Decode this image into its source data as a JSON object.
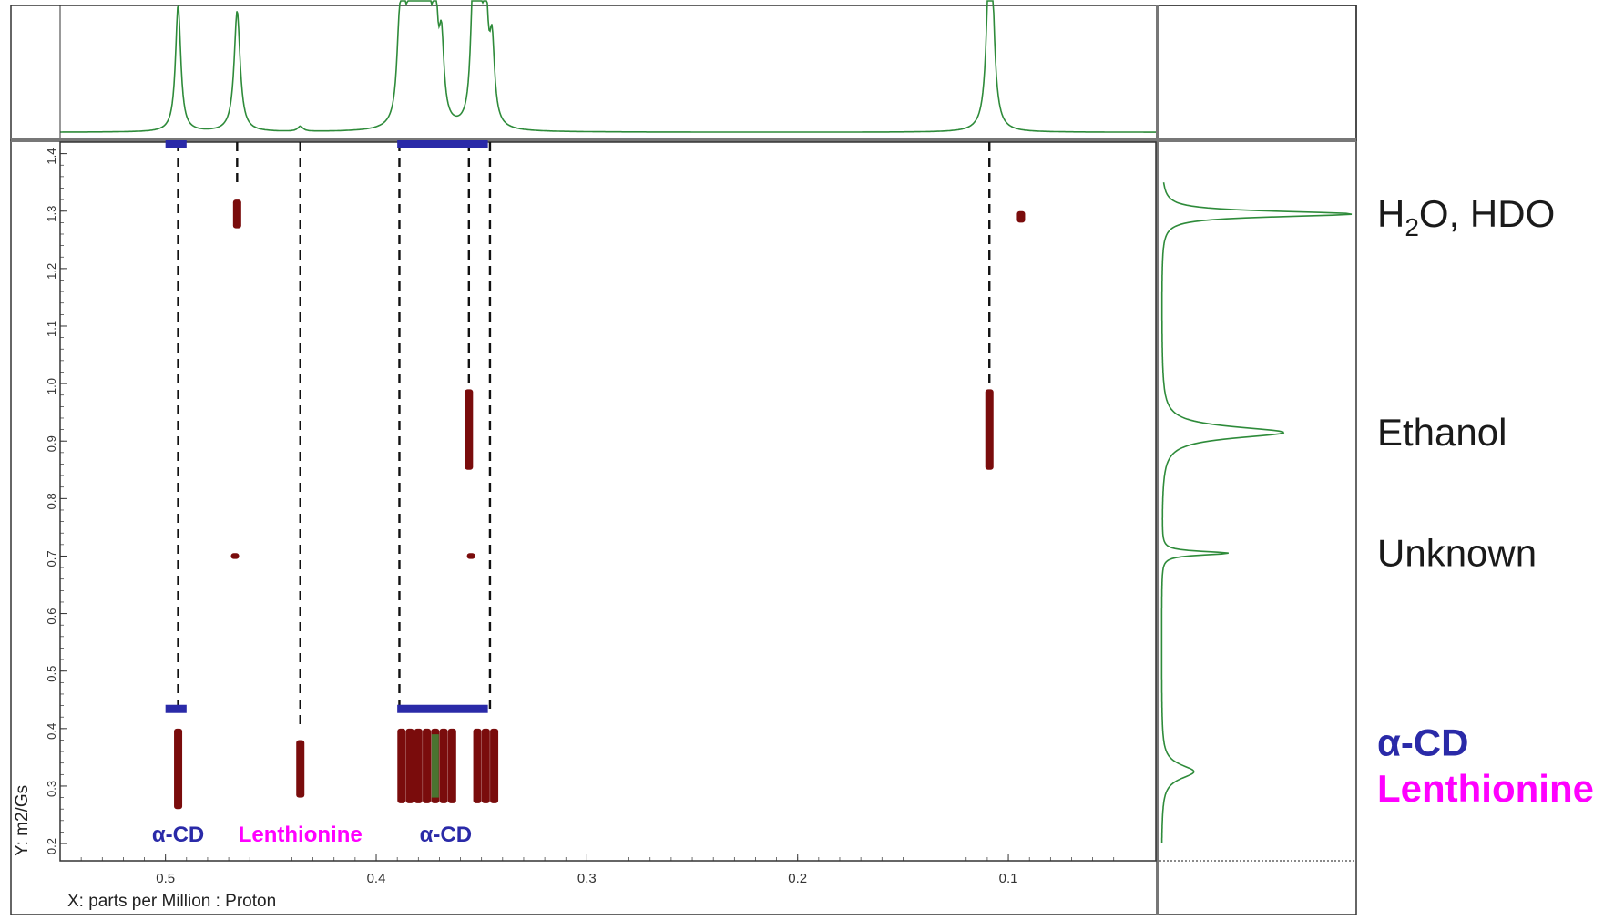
{
  "colors": {
    "spectrum": "#2e8b3a",
    "cross_peak": "#7a0c0c",
    "alpha_cd": "#2a2aa8",
    "lenthionine": "#ff00ff",
    "frame": "#333333"
  },
  "chart_data": {
    "type": "heatmap",
    "subtype": "2D DOSY NMR",
    "title": "",
    "xlabel": "X: parts per Million : Proton",
    "ylabel": "Y: m2/Gs",
    "xlim": [
      0.55,
      0.03
    ],
    "ylim": [
      0.17,
      1.42
    ],
    "x_ticks": [
      {
        "value": 0.5,
        "label": "0.5"
      },
      {
        "value": 0.4,
        "label": "0.4"
      },
      {
        "value": 0.3,
        "label": "0.3"
      },
      {
        "value": 0.2,
        "label": "0.2"
      },
      {
        "value": 0.1,
        "label": "0.1"
      }
    ],
    "y_ticks": [
      {
        "value": 0.2,
        "label": "0.2"
      },
      {
        "value": 0.3,
        "label": "0.3"
      },
      {
        "value": 0.4,
        "label": "0.4"
      },
      {
        "value": 0.5,
        "label": "0.5"
      },
      {
        "value": 0.6,
        "label": "0.6"
      },
      {
        "value": 0.7,
        "label": "0.7"
      },
      {
        "value": 0.8,
        "label": "0.8"
      },
      {
        "value": 0.9,
        "label": "0.9"
      },
      {
        "value": 1.0,
        "label": "1.0"
      },
      {
        "value": 1.1,
        "label": "1.1"
      },
      {
        "value": 1.2,
        "label": "1.2"
      },
      {
        "value": 1.3,
        "label": "1.3"
      },
      {
        "value": 1.4,
        "label": "1.4"
      }
    ],
    "cross_peaks": [
      {
        "x": 0.494,
        "y0": 0.26,
        "y1": 0.4
      },
      {
        "x": 0.436,
        "y0": 0.28,
        "y1": 0.38
      },
      {
        "x": 0.388,
        "y0": 0.27,
        "y1": 0.4
      },
      {
        "x": 0.384,
        "y0": 0.27,
        "y1": 0.4
      },
      {
        "x": 0.38,
        "y0": 0.27,
        "y1": 0.4
      },
      {
        "x": 0.376,
        "y0": 0.27,
        "y1": 0.4
      },
      {
        "x": 0.372,
        "y0": 0.27,
        "y1": 0.4
      },
      {
        "x": 0.368,
        "y0": 0.27,
        "y1": 0.4
      },
      {
        "x": 0.364,
        "y0": 0.27,
        "y1": 0.4
      },
      {
        "x": 0.352,
        "y0": 0.27,
        "y1": 0.4
      },
      {
        "x": 0.348,
        "y0": 0.27,
        "y1": 0.4
      },
      {
        "x": 0.344,
        "y0": 0.27,
        "y1": 0.4
      },
      {
        "x": 0.466,
        "y0": 1.27,
        "y1": 1.32
      },
      {
        "x": 0.094,
        "y0": 1.28,
        "y1": 1.3
      },
      {
        "x": 0.356,
        "y0": 0.85,
        "y1": 0.99
      },
      {
        "x": 0.109,
        "y0": 0.85,
        "y1": 0.99
      },
      {
        "x": 0.467,
        "y0": 0.695,
        "y1": 0.705
      },
      {
        "x": 0.355,
        "y0": 0.695,
        "y1": 0.705
      }
    ],
    "groups": [
      {
        "name": "α-CD",
        "x0": 0.49,
        "x1": 0.5,
        "color": "alpha_cd"
      },
      {
        "name": "α-CD",
        "x0": 0.347,
        "x1": 0.39,
        "color": "alpha_cd"
      }
    ],
    "guide_lines": [
      {
        "x": 0.494,
        "y_top": 1.42,
        "y_bottom": 0.43
      },
      {
        "x": 0.466,
        "y_top": 1.42,
        "y_bottom": 1.34
      },
      {
        "x": 0.436,
        "y_top": 1.42,
        "y_bottom": 0.4
      },
      {
        "x": 0.389,
        "y_top": 1.42,
        "y_bottom": 0.43
      },
      {
        "x": 0.356,
        "y_top": 1.42,
        "y_bottom": 1.0
      },
      {
        "x": 0.346,
        "y_top": 1.42,
        "y_bottom": 0.43
      },
      {
        "x": 0.109,
        "y_top": 1.42,
        "y_bottom": 1.0
      }
    ],
    "bottom_labels": [
      {
        "text": "α-CD",
        "x": 0.494,
        "color": "alpha_cd"
      },
      {
        "text": "Lenthionine",
        "x": 0.436,
        "color": "lenthionine"
      },
      {
        "text": "α-CD",
        "x": 0.367,
        "color": "alpha_cd"
      }
    ],
    "top_projection_peaks": [
      {
        "x": 0.494,
        "height": 1.0,
        "width": 0.0015
      },
      {
        "x": 0.466,
        "height": 0.95,
        "width": 0.0017
      },
      {
        "x": 0.436,
        "height": 0.04,
        "width": 0.0015
      },
      {
        "x": 0.389,
        "height": 0.6,
        "width": 0.0015
      },
      {
        "x": 0.387,
        "height": 0.75,
        "width": 0.0014
      },
      {
        "x": 0.384,
        "height": 0.9,
        "width": 0.0014
      },
      {
        "x": 0.381,
        "height": 0.85,
        "width": 0.0014
      },
      {
        "x": 0.378,
        "height": 0.95,
        "width": 0.0014
      },
      {
        "x": 0.375,
        "height": 0.8,
        "width": 0.0014
      },
      {
        "x": 0.372,
        "height": 0.9,
        "width": 0.0014
      },
      {
        "x": 0.369,
        "height": 0.6,
        "width": 0.0014
      },
      {
        "x": 0.354,
        "height": 1.0,
        "width": 0.0014
      },
      {
        "x": 0.351,
        "height": 1.0,
        "width": 0.0014
      },
      {
        "x": 0.348,
        "height": 0.85,
        "width": 0.0014
      },
      {
        "x": 0.345,
        "height": 0.6,
        "width": 0.0014
      },
      {
        "x": 0.109,
        "height": 1.0,
        "width": 0.0016
      },
      {
        "x": 0.108,
        "height": 0.8,
        "width": 0.0016
      }
    ],
    "side_projection_peaks": [
      {
        "y": 1.295,
        "intensity": 1.0,
        "width": 0.006
      },
      {
        "y": 0.915,
        "intensity": 0.64,
        "width": 0.012
      },
      {
        "y": 0.705,
        "intensity": 0.35,
        "width": 0.004
      },
      {
        "y": 0.325,
        "intensity": 0.17,
        "width": 0.015
      }
    ],
    "side_labels": [
      {
        "id": "h2o",
        "y": 1.295
      },
      {
        "id": "ethanol",
        "y": 0.915
      },
      {
        "id": "unknown",
        "y": 0.705
      },
      {
        "id": "mix",
        "y": 0.33
      }
    ]
  },
  "labels": {
    "h2o_prefix": "H",
    "h2o_sub": "2",
    "h2o_suffix": "O, HDO",
    "ethanol": "Ethanol",
    "unknown": "Unknown",
    "alpha_cd": "α-CD",
    "lenthionine": "Lenthionine"
  }
}
